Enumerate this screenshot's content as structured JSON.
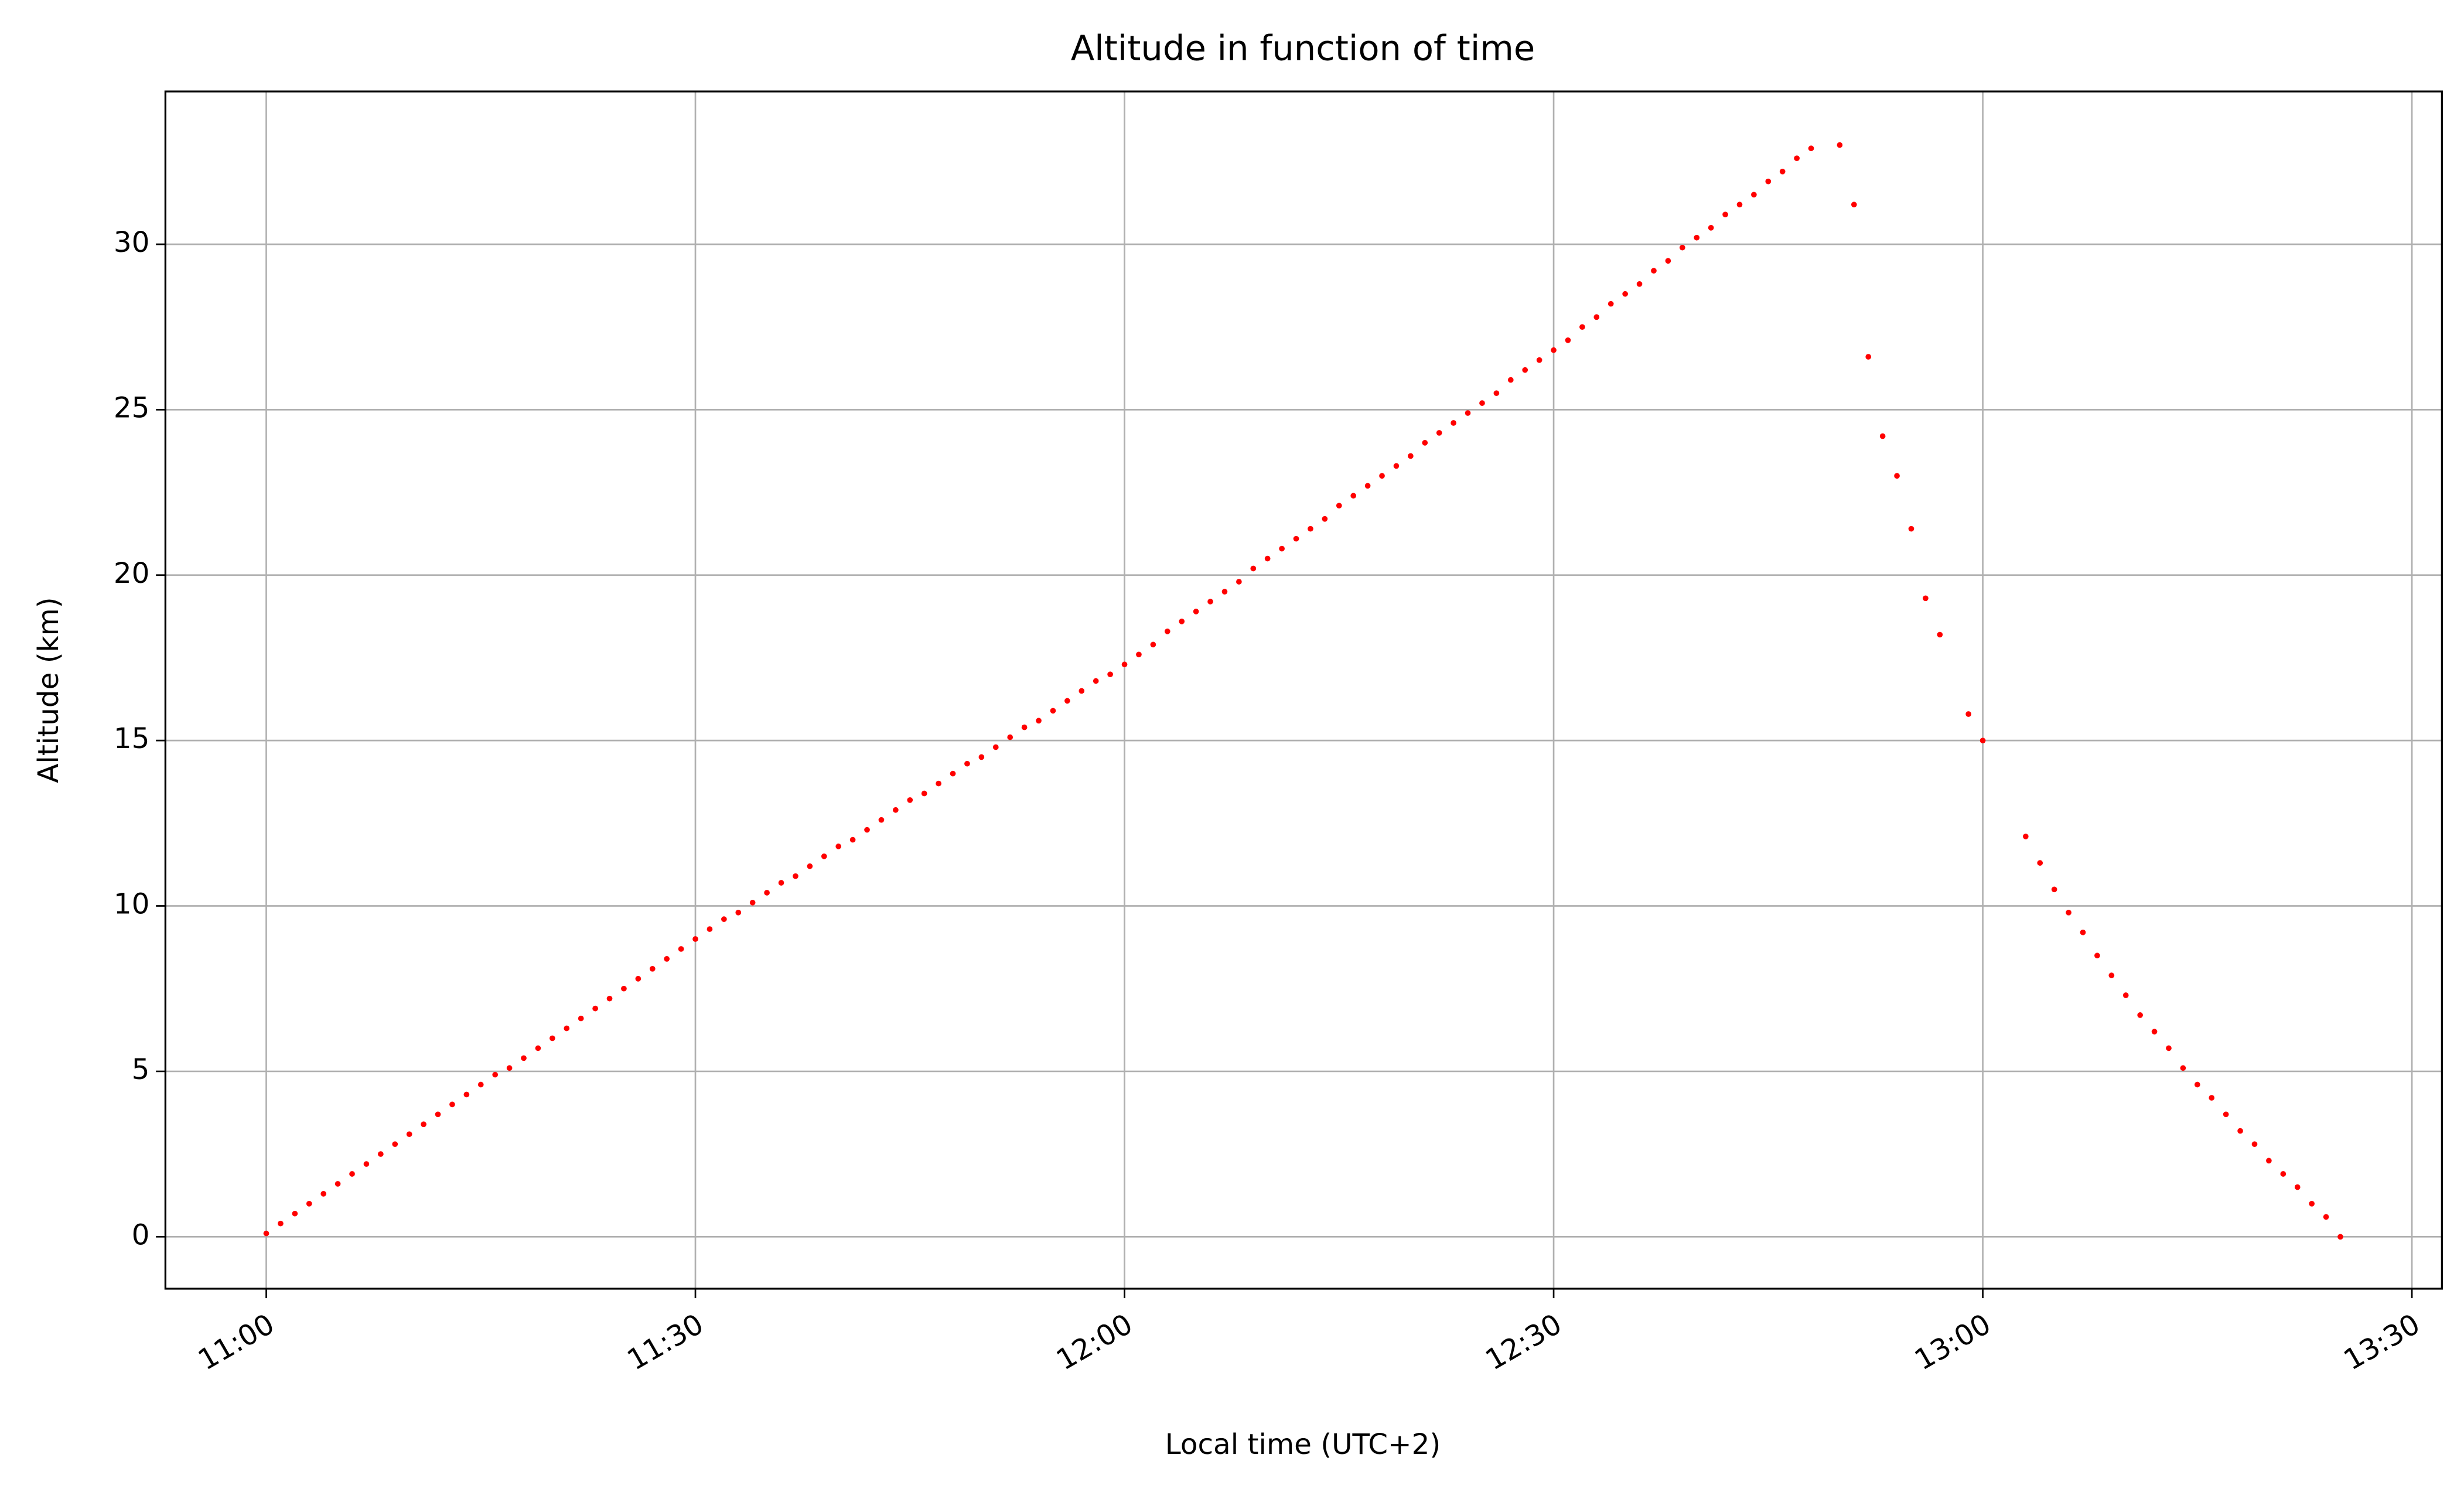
{
  "chart_data": {
    "type": "scatter",
    "title": "Altitude in function of time",
    "x_label": "Local time (UTC+2)",
    "y_label": "Altitude (km)",
    "color": "#ff0000",
    "grid": true,
    "x": [
      660,
      661,
      662,
      663,
      664,
      665,
      666,
      667,
      668,
      669,
      670,
      671,
      672,
      673,
      674,
      675,
      676,
      677,
      678,
      679,
      680,
      681,
      682,
      683,
      684,
      685,
      686,
      687,
      688,
      689,
      690,
      691,
      692,
      693,
      694,
      695,
      696,
      697,
      698,
      699,
      700,
      701,
      702,
      703,
      704,
      705,
      706,
      707,
      708,
      709,
      710,
      711,
      712,
      713,
      714,
      715,
      716,
      717,
      718,
      719,
      720,
      721,
      722,
      723,
      724,
      725,
      726,
      727,
      728,
      729,
      730,
      731,
      732,
      733,
      734,
      735,
      736,
      737,
      738,
      739,
      740,
      741,
      742,
      743,
      744,
      745,
      746,
      747,
      748,
      749,
      750,
      751,
      752,
      753,
      754,
      755,
      756,
      757,
      758,
      759,
      760,
      761,
      762,
      763,
      764,
      765,
      766,
      767,
      768,
      770,
      771,
      772,
      773,
      774,
      775,
      776,
      777,
      779,
      780,
      783,
      784,
      785,
      786,
      787,
      788,
      789,
      790,
      791,
      792,
      793,
      794,
      795,
      796,
      797,
      798,
      799,
      800,
      801,
      802,
      803,
      804,
      805
    ],
    "values": [
      0.1,
      0.4,
      0.7,
      1.0,
      1.3,
      1.6,
      1.9,
      2.2,
      2.5,
      2.8,
      3.1,
      3.4,
      3.7,
      4.0,
      4.3,
      4.6,
      4.9,
      5.1,
      5.4,
      5.7,
      6.0,
      6.3,
      6.6,
      6.9,
      7.2,
      7.5,
      7.8,
      8.1,
      8.4,
      8.7,
      9.0,
      9.3,
      9.6,
      9.8,
      10.1,
      10.4,
      10.7,
      10.9,
      11.2,
      11.5,
      11.8,
      12.0,
      12.3,
      12.6,
      12.9,
      13.2,
      13.4,
      13.7,
      14.0,
      14.3,
      14.5,
      14.8,
      15.1,
      15.4,
      15.6,
      15.9,
      16.2,
      16.5,
      16.8,
      17.0,
      17.3,
      17.6,
      17.9,
      18.3,
      18.6,
      18.9,
      19.2,
      19.5,
      19.8,
      20.2,
      20.5,
      20.8,
      21.1,
      21.4,
      21.7,
      22.1,
      22.4,
      22.7,
      23.0,
      23.3,
      23.6,
      24.0,
      24.3,
      24.6,
      24.9,
      25.2,
      25.5,
      25.9,
      26.2,
      26.5,
      26.8,
      27.1,
      27.5,
      27.8,
      28.2,
      28.5,
      28.8,
      29.2,
      29.5,
      29.9,
      30.2,
      30.5,
      30.9,
      31.2,
      31.5,
      31.9,
      32.2,
      32.6,
      32.9,
      33.0,
      31.2,
      26.6,
      24.2,
      23.0,
      21.4,
      19.3,
      18.2,
      15.8,
      15.0,
      12.1,
      11.3,
      10.5,
      9.8,
      9.2,
      8.5,
      7.9,
      7.3,
      6.7,
      6.2,
      5.7,
      5.1,
      4.6,
      4.2,
      3.7,
      3.2,
      2.8,
      2.3,
      1.9,
      1.5,
      1.0,
      0.6,
      0.0
    ],
    "xlim": [
      652.95,
      812.1
    ],
    "xticks": [
      {
        "value": 660,
        "label": "11:00"
      },
      {
        "value": 690,
        "label": "11:30"
      },
      {
        "value": 720,
        "label": "12:00"
      },
      {
        "value": 750,
        "label": "12:30"
      },
      {
        "value": 780,
        "label": "13:00"
      },
      {
        "value": 810,
        "label": "13:30"
      }
    ],
    "ylim": [
      -1.57,
      34.62
    ],
    "yticks": [
      0,
      5,
      10,
      15,
      20,
      25,
      30
    ]
  }
}
